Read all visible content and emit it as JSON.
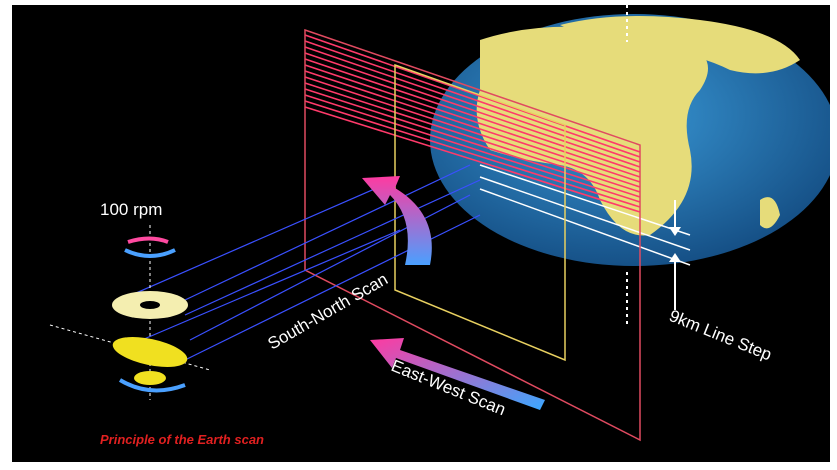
{
  "title": "Principle of the Earth scan",
  "labels": {
    "rotation": "100 rpm",
    "south_north": "South-North Scan",
    "east_west": "East-West Scan",
    "line_step": "9km Line Step"
  }
}
